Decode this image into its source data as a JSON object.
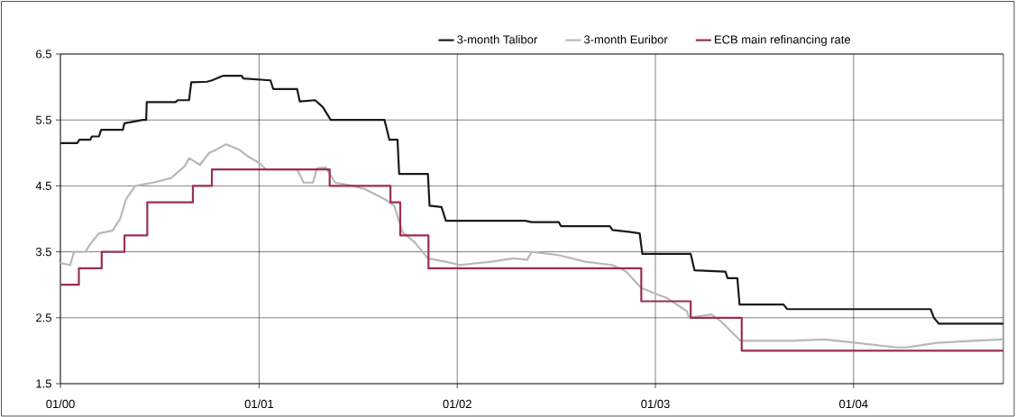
{
  "chart_data": {
    "type": "line",
    "xlim": [
      "2000-01-01",
      "2004-10-03"
    ],
    "ylim": [
      1.5,
      6.5
    ],
    "xticks": [
      {
        "value": "2000-01",
        "label": "01/00"
      },
      {
        "value": "2001-01",
        "label": "01/01"
      },
      {
        "value": "2002-01",
        "label": "01/02"
      },
      {
        "value": "2003-01",
        "label": "01/03"
      },
      {
        "value": "2004-01",
        "label": "01/04"
      }
    ],
    "yticks": [
      {
        "value": 1.5,
        "label": "1.5"
      },
      {
        "value": 2.5,
        "label": "2.5"
      },
      {
        "value": 3.5,
        "label": "3.5"
      },
      {
        "value": 4.5,
        "label": "4.5"
      },
      {
        "value": 5.5,
        "label": "5.5"
      },
      {
        "value": 6.5,
        "label": "6.5"
      }
    ],
    "grid": true,
    "legend": "top",
    "marker": "none",
    "line_style": "solid",
    "series": [
      {
        "name": "3-month Talibor",
        "color": "#1a1a1a",
        "x": [
          "2000-01-01",
          "2000-02-01",
          "2000-02-05",
          "2000-02-25",
          "2000-02-28",
          "2000-03-12",
          "2000-03-16",
          "2000-04-25",
          "2000-04-28",
          "2000-06-01",
          "2000-06-07",
          "2000-06-08",
          "2000-07-31",
          "2000-08-04",
          "2000-08-25",
          "2000-08-29",
          "2000-09-27",
          "2000-10-06",
          "2000-10-26",
          "2000-11-30",
          "2000-12-03",
          "2001-01-22",
          "2001-01-27",
          "2001-03-12",
          "2001-03-17",
          "2001-04-14",
          "2001-04-28",
          "2001-05-13",
          "2001-08-20",
          "2001-08-29",
          "2001-09-13",
          "2001-09-16",
          "2001-11-08",
          "2001-11-11",
          "2001-12-03",
          "2001-12-11",
          "2002-05-06",
          "2002-05-18",
          "2002-07-07",
          "2002-07-11",
          "2002-10-09",
          "2002-10-14",
          "2002-11-16",
          "2002-12-03",
          "2002-12-08",
          "2003-03-07",
          "2003-03-14",
          "2003-05-10",
          "2003-05-14",
          "2003-06-01",
          "2003-06-05",
          "2003-08-25",
          "2003-09-01",
          "2004-05-22",
          "2004-05-28",
          "2004-06-06",
          "2004-10-03"
        ],
        "values": [
          5.15,
          5.15,
          5.2,
          5.2,
          5.25,
          5.25,
          5.35,
          5.35,
          5.45,
          5.5,
          5.5,
          5.77,
          5.77,
          5.8,
          5.8,
          6.07,
          6.08,
          6.1,
          6.17,
          6.17,
          6.13,
          6.1,
          5.97,
          5.97,
          5.78,
          5.8,
          5.7,
          5.5,
          5.5,
          5.2,
          5.2,
          4.68,
          4.68,
          4.2,
          4.18,
          3.97,
          3.97,
          3.95,
          3.95,
          3.89,
          3.89,
          3.83,
          3.8,
          3.78,
          3.47,
          3.47,
          3.22,
          3.2,
          3.1,
          3.1,
          2.7,
          2.7,
          2.63,
          2.63,
          2.5,
          2.41,
          2.41
        ]
      },
      {
        "name": "3-month Euribor",
        "color": "#b8b8b8",
        "x": [
          "2000-01-01",
          "2000-01-19",
          "2000-01-26",
          "2000-02-16",
          "2000-02-25",
          "2000-03-12",
          "2000-04-06",
          "2000-04-20",
          "2000-05-01",
          "2000-05-18",
          "2000-06-20",
          "2000-07-23",
          "2000-08-17",
          "2000-08-25",
          "2000-09-14",
          "2000-10-01",
          "2000-10-14",
          "2000-11-01",
          "2000-11-11",
          "2000-11-25",
          "2000-12-11",
          "2001-01-01",
          "2001-01-14",
          "2001-03-12",
          "2001-03-24",
          "2001-04-10",
          "2001-04-18",
          "2001-05-04",
          "2001-05-21",
          "2001-06-23",
          "2001-07-15",
          "2001-08-20",
          "2001-09-07",
          "2001-09-22",
          "2001-10-14",
          "2001-11-08",
          "2001-12-11",
          "2002-01-06",
          "2002-03-04",
          "2002-04-14",
          "2002-05-10",
          "2002-05-18",
          "2002-07-07",
          "2002-08-25",
          "2002-10-14",
          "2002-11-08",
          "2002-12-06",
          "2003-01-06",
          "2003-01-22",
          "2003-02-28",
          "2003-03-04",
          "2003-04-14",
          "2003-05-01",
          "2003-06-07",
          "2003-09-11",
          "2003-11-08",
          "2004-01-06",
          "2004-03-20",
          "2004-04-06",
          "2004-06-03",
          "2004-08-09",
          "2004-10-03"
        ],
        "values": [
          3.33,
          3.3,
          3.5,
          3.5,
          3.62,
          3.78,
          3.82,
          4.0,
          4.3,
          4.5,
          4.55,
          4.62,
          4.8,
          4.92,
          4.82,
          5.0,
          5.05,
          5.13,
          5.1,
          5.05,
          4.95,
          4.85,
          4.75,
          4.75,
          4.55,
          4.55,
          4.77,
          4.78,
          4.55,
          4.5,
          4.45,
          4.3,
          4.2,
          3.8,
          3.65,
          3.4,
          3.35,
          3.3,
          3.35,
          3.4,
          3.38,
          3.5,
          3.45,
          3.35,
          3.3,
          3.2,
          2.95,
          2.85,
          2.8,
          2.6,
          2.5,
          2.55,
          2.45,
          2.15,
          2.15,
          2.17,
          2.12,
          2.05,
          2.05,
          2.12,
          2.15,
          2.17
        ]
      },
      {
        "name": "ECB main refinancing rate",
        "type": "step",
        "color": "#9b2d57",
        "x": [
          "2000-01-01",
          "2000-02-04",
          "2000-03-17",
          "2000-04-28",
          "2000-06-09",
          "2000-09-01",
          "2000-10-06",
          "2001-05-11",
          "2001-08-31",
          "2001-09-18",
          "2001-11-09",
          "2002-12-06",
          "2003-03-07",
          "2003-06-09",
          "2004-10-03"
        ],
        "values": [
          3.0,
          3.25,
          3.5,
          3.75,
          4.25,
          4.5,
          4.75,
          4.5,
          4.25,
          3.75,
          3.25,
          2.75,
          2.5,
          2.0,
          2.0
        ]
      }
    ]
  }
}
